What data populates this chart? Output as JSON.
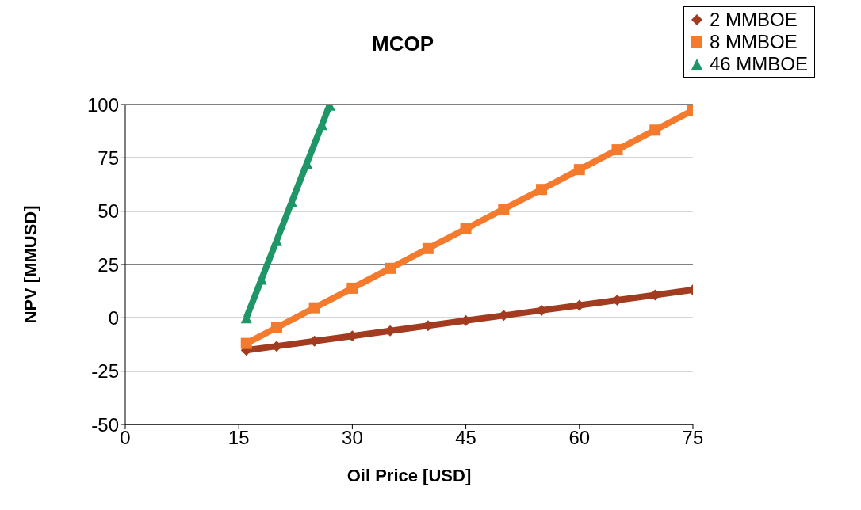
{
  "chart_data": {
    "type": "line",
    "title": "MCOP",
    "xlabel": "Oil Price [USD]",
    "ylabel": "NPV [MMUSD]",
    "xlim": [
      0,
      75
    ],
    "xticks": [
      0,
      15,
      30,
      45,
      60,
      75
    ],
    "ylim": [
      -50,
      100
    ],
    "yticks": [
      -50,
      -25,
      0,
      25,
      50,
      75,
      100
    ],
    "grid": "y",
    "legend": "top right",
    "series": [
      {
        "name": "2 MMBOE",
        "color": "#a23b20",
        "marker": "diamond",
        "x": [
          16,
          20,
          25,
          30,
          35,
          40,
          45,
          50,
          55,
          60,
          65,
          70,
          75
        ],
        "values": [
          -15.2,
          -13.3,
          -10.9,
          -8.5,
          -6.1,
          -3.7,
          -1.3,
          1.1,
          3.5,
          5.9,
          8.3,
          10.7,
          13.1
        ]
      },
      {
        "name": "8 MMBOE",
        "color": "#f47a2d",
        "marker": "square",
        "x": [
          16,
          20,
          25,
          30,
          35,
          40,
          45,
          50,
          55,
          60,
          65,
          70,
          75
        ],
        "values": [
          -12,
          -4.6,
          4.7,
          13.9,
          23.2,
          32.5,
          41.7,
          51.0,
          60.2,
          69.5,
          78.8,
          88.0,
          97.3
        ]
      },
      {
        "name": "46 MMBOE",
        "color": "#1e9668",
        "marker": "triangle",
        "x": [
          16,
          18,
          20,
          22,
          24,
          26,
          27
        ],
        "values": [
          0,
          18.1,
          36.2,
          54.4,
          72.5,
          90.6,
          99.7
        ]
      }
    ]
  }
}
